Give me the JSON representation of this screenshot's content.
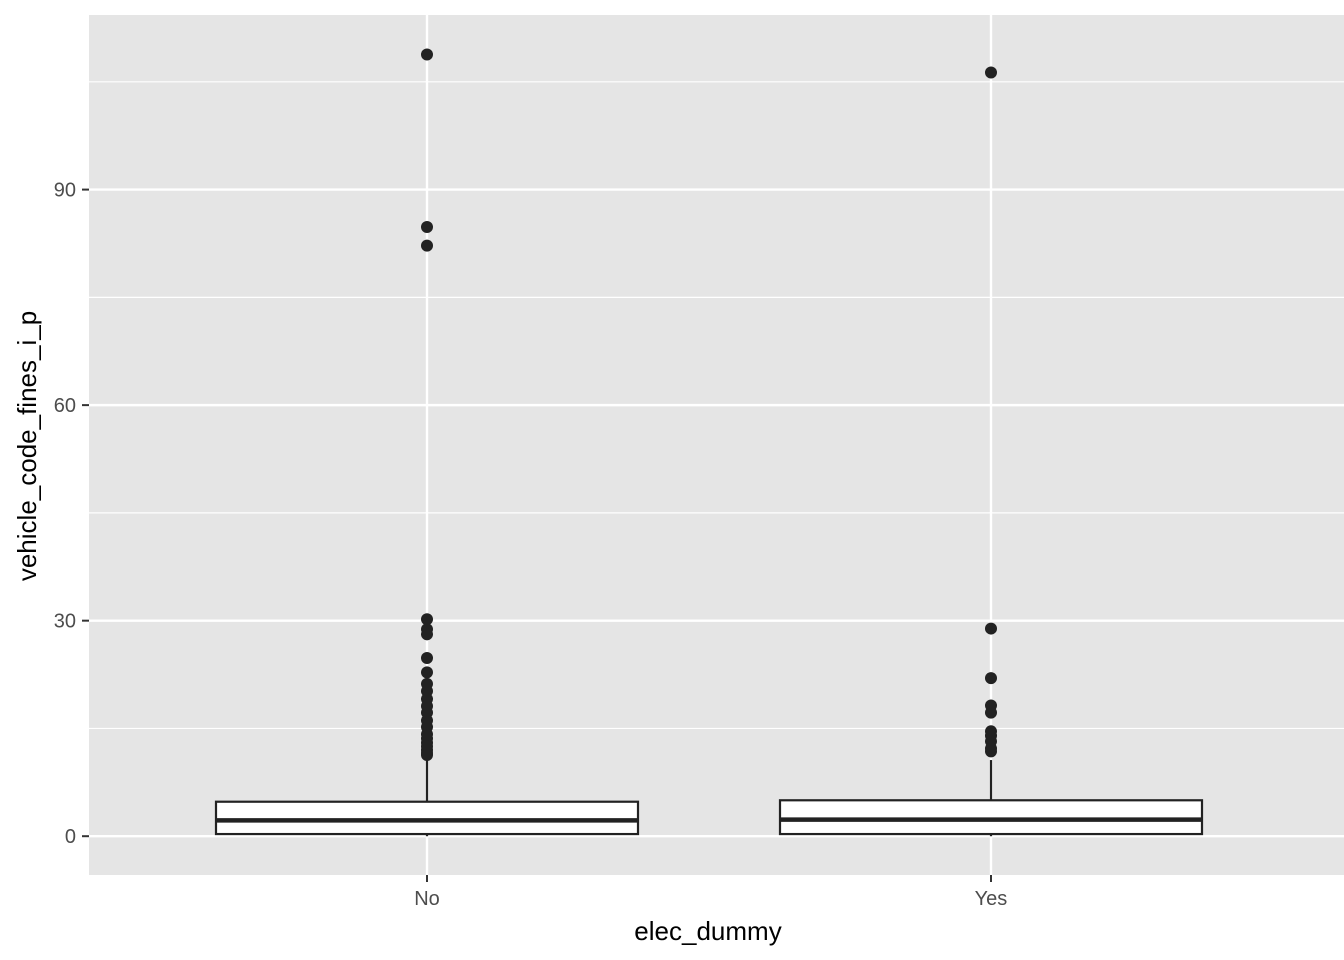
{
  "chart_data": {
    "type": "boxplot",
    "title": "",
    "xlabel": "elec_dummy",
    "ylabel": "vehicle_code_fines_i_p",
    "categories": [
      "No",
      "Yes"
    ],
    "ylim": [
      -5.4,
      114.3
    ],
    "yticks": [
      0,
      30,
      60,
      90
    ],
    "ytick_labels": [
      "0",
      "30",
      "60",
      "90"
    ],
    "grid": true,
    "panel_background": "#e5e5e5",
    "grid_color": "#ffffff",
    "box_fill": "#ffffff",
    "line_color": "#222222",
    "boxes": [
      {
        "category": "No",
        "whisker_low": 0,
        "q1": 0.3,
        "median": 2.2,
        "q3": 4.8,
        "whisker_high": 11.0,
        "outliers": [
          108.8,
          84.8,
          82.2,
          30.2,
          28.8,
          28.1,
          24.8,
          22.8,
          21.2,
          20.2,
          19.1,
          18.1,
          17.2,
          16.1,
          15.2,
          14.2,
          13.6,
          13.0,
          12.5,
          12.0,
          11.6,
          11.3
        ]
      },
      {
        "category": "Yes",
        "whisker_low": 0,
        "q1": 0.3,
        "median": 2.3,
        "q3": 5.0,
        "whisker_high": 10.6,
        "outliers": [
          106.3,
          28.9,
          22.0,
          18.2,
          17.2,
          14.6,
          14.0,
          13.2,
          12.2,
          11.8
        ]
      }
    ]
  }
}
